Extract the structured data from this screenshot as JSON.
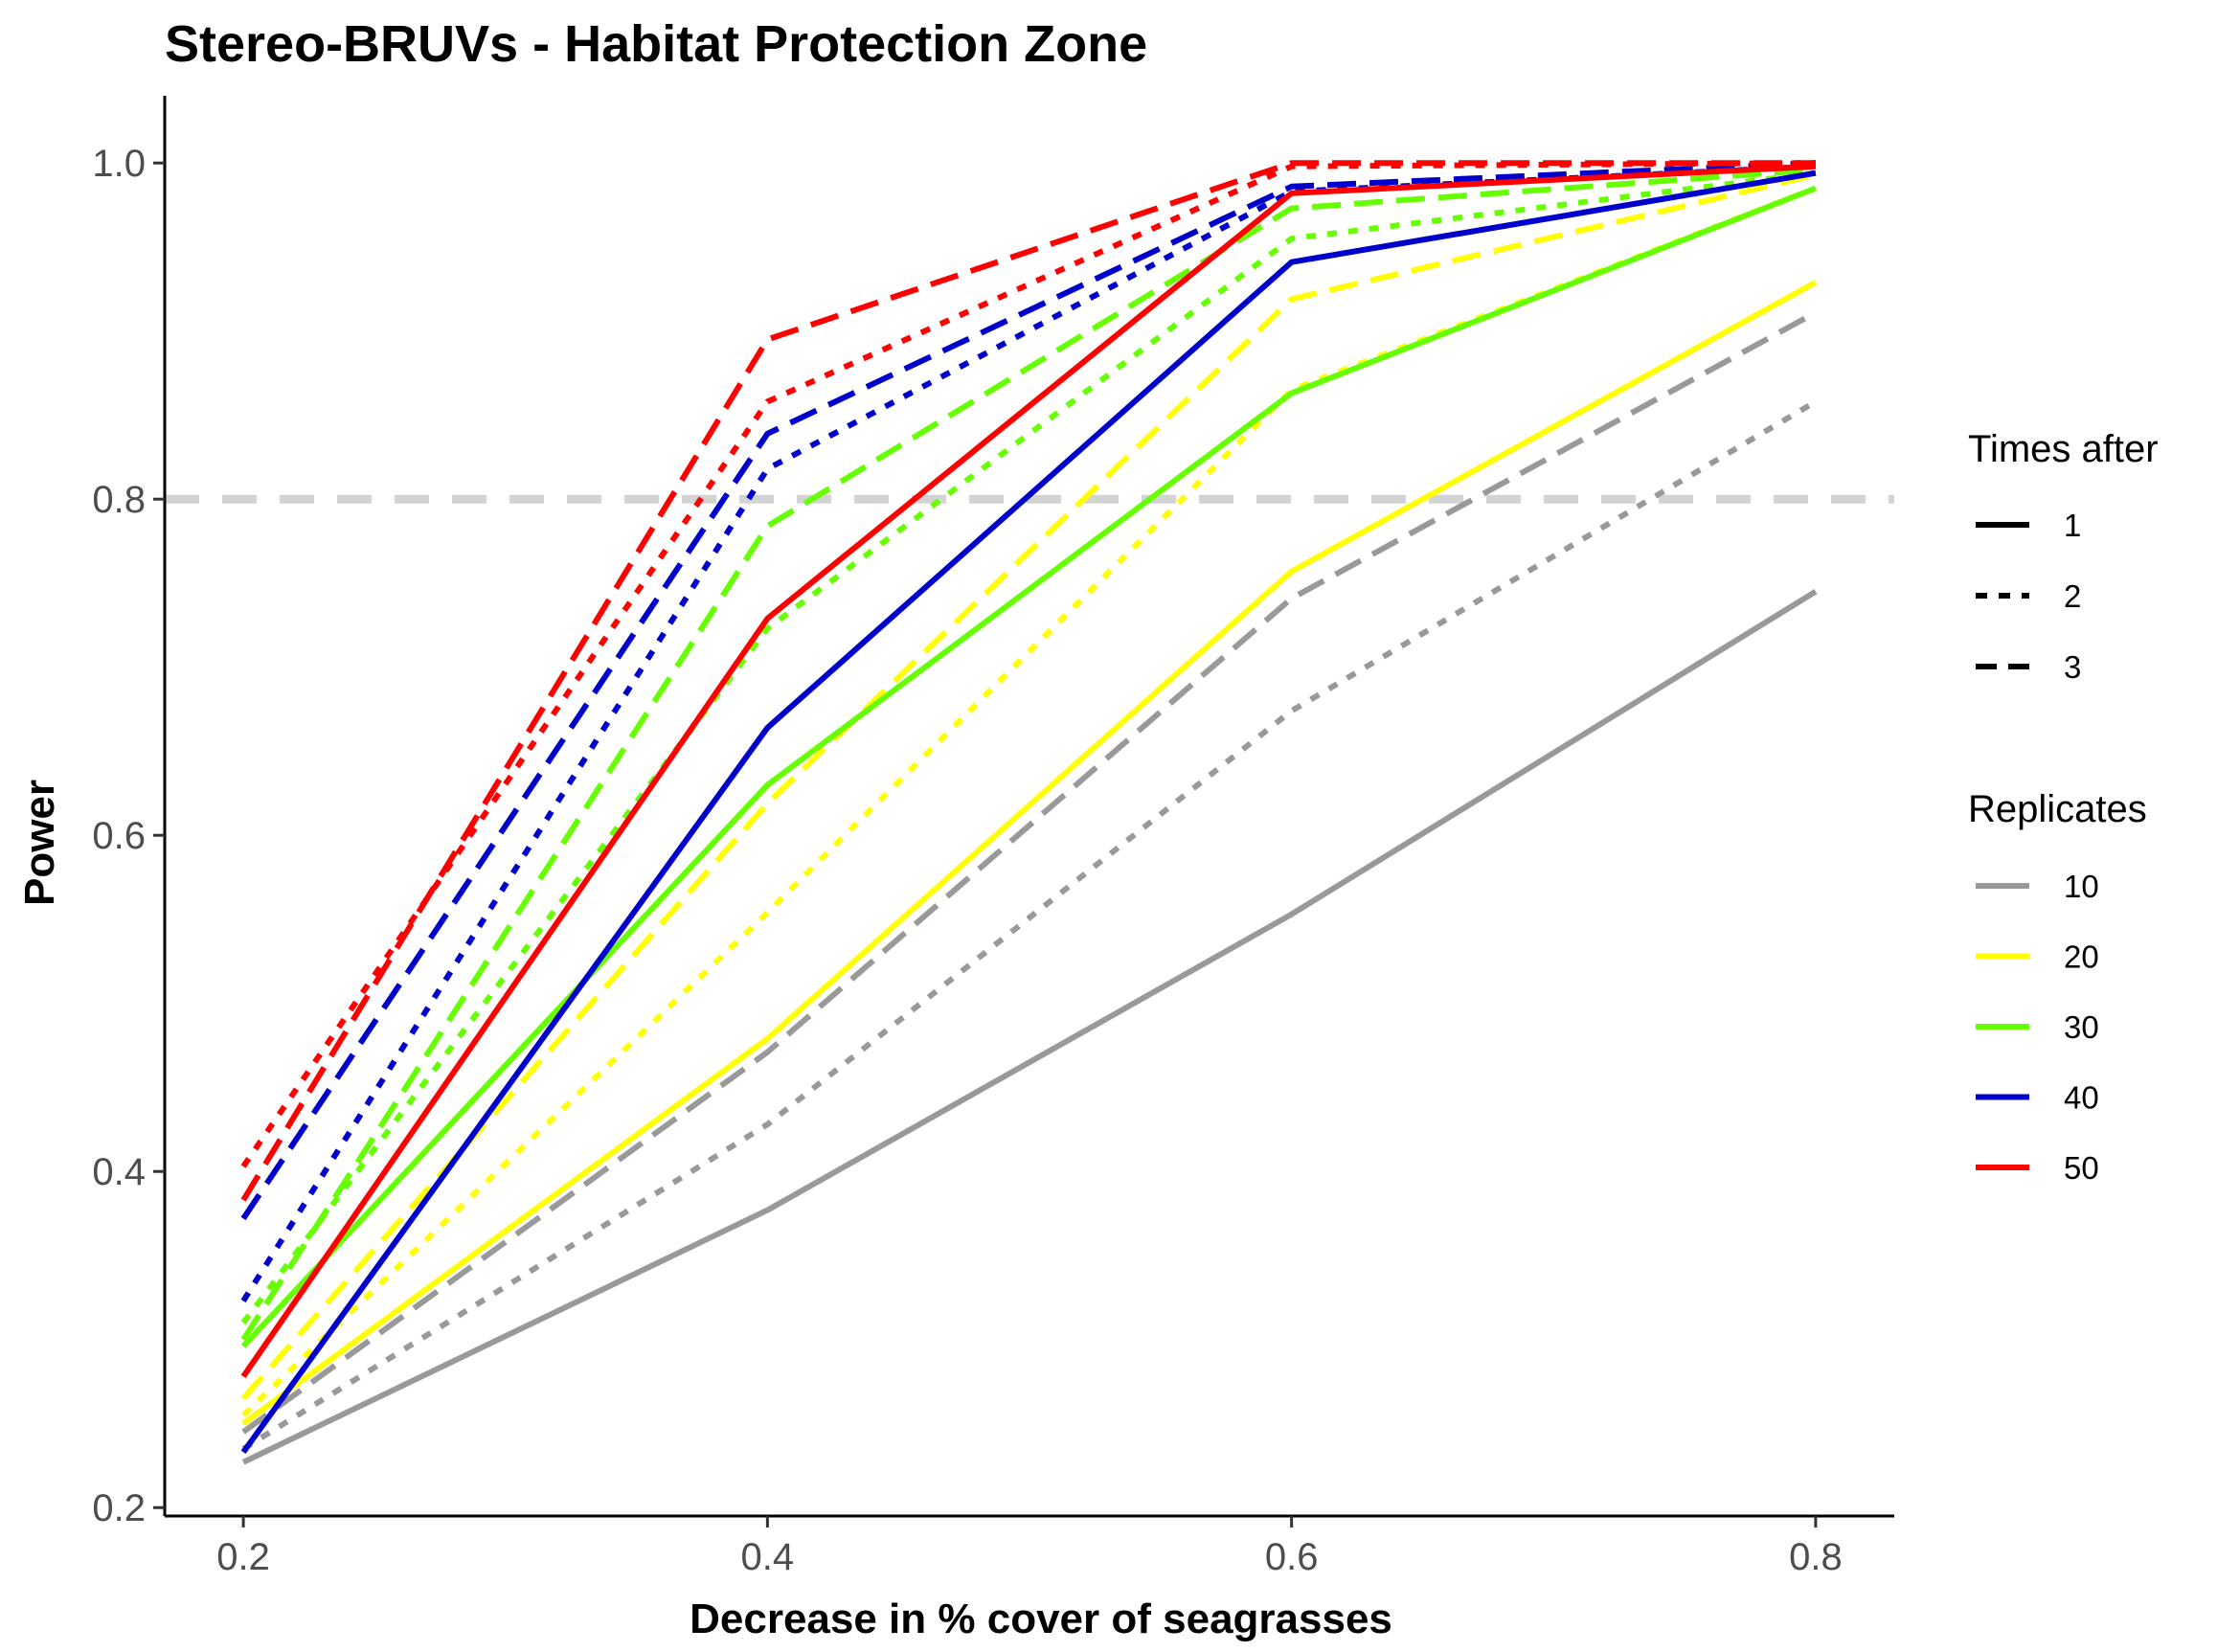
{
  "chart_data": {
    "type": "line",
    "title": "Stereo-BRUVs - Habitat Protection Zone",
    "xlabel": "Decrease in % cover of seagrasses",
    "ylabel": "Power",
    "x": [
      0.2,
      0.4,
      0.6,
      0.8
    ],
    "x_ticks": [
      "0.2",
      "0.4",
      "0.6",
      "0.8"
    ],
    "y_ticks": [
      "0.2",
      "0.4",
      "0.6",
      "0.8",
      "1.0"
    ],
    "xlim": [
      0.17,
      0.83
    ],
    "ylim": [
      0.195,
      1.04
    ],
    "reference_line": {
      "y": 0.8,
      "color": "#d3d3d3",
      "style": "dashed"
    },
    "grid": false,
    "legend_placement": "right",
    "legend_linetype": {
      "title": "Times after",
      "entries": [
        {
          "label": "1",
          "style": "solid"
        },
        {
          "label": "2",
          "style": "dotted"
        },
        {
          "label": "3",
          "style": "dashed"
        }
      ]
    },
    "legend_color": {
      "title": "Replicates",
      "entries": [
        {
          "label": "10",
          "color": "#999999"
        },
        {
          "label": "20",
          "color": "#ffff00"
        },
        {
          "label": "30",
          "color": "#66ff00"
        },
        {
          "label": "40",
          "color": "#0000cc"
        },
        {
          "label": "50",
          "color": "#ff0000"
        }
      ]
    },
    "series": [
      {
        "replicates": "10",
        "times_after": "1",
        "color": "#999999",
        "style": "solid",
        "values": [
          0.227,
          0.377,
          0.553,
          0.745
        ]
      },
      {
        "replicates": "10",
        "times_after": "2",
        "color": "#999999",
        "style": "dotted",
        "values": [
          0.235,
          0.428,
          0.674,
          0.858
        ]
      },
      {
        "replicates": "10",
        "times_after": "3",
        "color": "#999999",
        "style": "dashed",
        "values": [
          0.245,
          0.471,
          0.741,
          0.911
        ]
      },
      {
        "replicates": "20",
        "times_after": "1",
        "color": "#ffff00",
        "style": "solid",
        "values": [
          0.25,
          0.479,
          0.757,
          0.929
        ]
      },
      {
        "replicates": "20",
        "times_after": "2",
        "color": "#ffff00",
        "style": "dotted",
        "values": [
          0.255,
          0.554,
          0.865,
          0.985
        ]
      },
      {
        "replicates": "20",
        "times_after": "3",
        "color": "#ffff00",
        "style": "dashed",
        "values": [
          0.265,
          0.619,
          0.919,
          0.993
        ]
      },
      {
        "replicates": "30",
        "times_after": "1",
        "color": "#66ff00",
        "style": "solid",
        "values": [
          0.296,
          0.63,
          0.863,
          0.985
        ]
      },
      {
        "replicates": "30",
        "times_after": "2",
        "color": "#66ff00",
        "style": "dotted",
        "values": [
          0.31,
          0.723,
          0.955,
          0.994
        ]
      },
      {
        "replicates": "30",
        "times_after": "3",
        "color": "#66ff00",
        "style": "dashed",
        "values": [
          0.3,
          0.784,
          0.973,
          0.996
        ]
      },
      {
        "replicates": "40",
        "times_after": "1",
        "color": "#0000cc",
        "style": "solid",
        "values": [
          0.233,
          0.664,
          0.941,
          0.994
        ]
      },
      {
        "replicates": "40",
        "times_after": "2",
        "color": "#0000cc",
        "style": "dotted",
        "values": [
          0.323,
          0.818,
          0.983,
          0.998
        ]
      },
      {
        "replicates": "40",
        "times_after": "3",
        "color": "#0000cc",
        "style": "dashed",
        "values": [
          0.372,
          0.839,
          0.986,
          1.0
        ]
      },
      {
        "replicates": "50",
        "times_after": "1",
        "color": "#ff0000",
        "style": "solid",
        "values": [
          0.278,
          0.729,
          0.982,
          0.998
        ]
      },
      {
        "replicates": "50",
        "times_after": "2",
        "color": "#ff0000",
        "style": "dotted",
        "values": [
          0.403,
          0.858,
          0.998,
          1.0
        ]
      },
      {
        "replicates": "50",
        "times_after": "3",
        "color": "#ff0000",
        "style": "dashed",
        "values": [
          0.383,
          0.895,
          1.0,
          1.0
        ]
      }
    ]
  }
}
